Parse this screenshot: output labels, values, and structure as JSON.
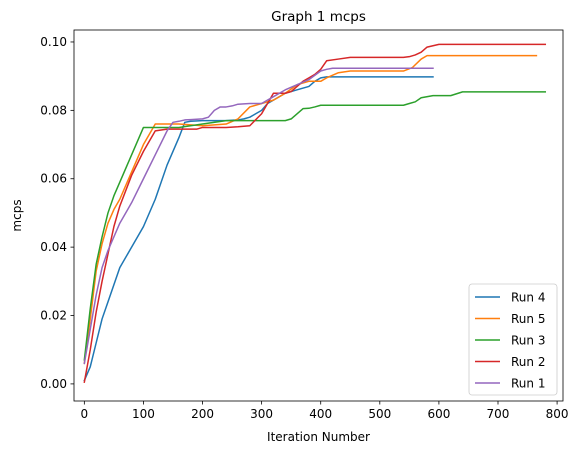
{
  "chart_data": {
    "type": "line",
    "title": "Graph 1 mcps",
    "xlabel": "Iteration Number",
    "ylabel": "mcps",
    "xlim": [
      -17.5,
      810
    ],
    "ylim": [
      -0.005,
      0.1035
    ],
    "xticks": [
      0,
      100,
      200,
      300,
      400,
      500,
      600,
      700,
      800
    ],
    "xtick_labels": [
      "0",
      "100",
      "200",
      "300",
      "400",
      "500",
      "600",
      "700",
      "800"
    ],
    "yticks": [
      0.0,
      0.02,
      0.04,
      0.06,
      0.08,
      0.1
    ],
    "ytick_labels": [
      "0.00",
      "0.02",
      "0.04",
      "0.06",
      "0.08",
      "0.10"
    ],
    "grid": false,
    "legend_position": "lower-right",
    "series": [
      {
        "name": "Run 4",
        "color": "#1f77b4",
        "x": [
          0,
          10,
          20,
          30,
          40,
          50,
          60,
          80,
          100,
          120,
          140,
          160,
          170,
          180,
          200,
          220,
          240,
          260,
          270,
          280,
          290,
          300,
          310,
          320,
          340,
          360,
          380,
          390,
          400,
          410,
          450,
          500,
          550,
          590
        ],
        "y": [
          0.001,
          0.005,
          0.012,
          0.019,
          0.024,
          0.029,
          0.034,
          0.04,
          0.046,
          0.054,
          0.064,
          0.072,
          0.0765,
          0.0768,
          0.077,
          0.077,
          0.077,
          0.0772,
          0.0775,
          0.078,
          0.079,
          0.08,
          0.082,
          0.083,
          0.085,
          0.086,
          0.087,
          0.0885,
          0.0895,
          0.0898,
          0.0898,
          0.0898,
          0.0898,
          0.0898
        ]
      },
      {
        "name": "Run 5",
        "color": "#ff7f0e",
        "x": [
          0,
          10,
          20,
          30,
          40,
          50,
          60,
          80,
          100,
          120,
          140,
          160,
          200,
          240,
          260,
          280,
          300,
          320,
          340,
          360,
          380,
          400,
          410,
          430,
          450,
          500,
          540,
          555,
          570,
          580,
          600,
          650,
          700,
          765
        ],
        "y": [
          0.006,
          0.019,
          0.033,
          0.041,
          0.047,
          0.051,
          0.054,
          0.062,
          0.07,
          0.076,
          0.076,
          0.076,
          0.0755,
          0.076,
          0.0775,
          0.081,
          0.082,
          0.083,
          0.085,
          0.0875,
          0.0885,
          0.0885,
          0.0895,
          0.091,
          0.0915,
          0.0915,
          0.0915,
          0.0925,
          0.095,
          0.096,
          0.096,
          0.096,
          0.096,
          0.096
        ]
      },
      {
        "name": "Run 3",
        "color": "#2ca02c",
        "x": [
          0,
          10,
          20,
          30,
          40,
          50,
          60,
          80,
          100,
          120,
          160,
          200,
          240,
          280,
          300,
          320,
          340,
          350,
          360,
          370,
          380,
          390,
          400,
          450,
          500,
          540,
          550,
          560,
          570,
          590,
          620,
          640,
          700,
          780
        ],
        "y": [
          0.007,
          0.022,
          0.035,
          0.043,
          0.05,
          0.055,
          0.059,
          0.067,
          0.075,
          0.075,
          0.075,
          0.076,
          0.077,
          0.077,
          0.077,
          0.077,
          0.077,
          0.0775,
          0.079,
          0.0805,
          0.0806,
          0.081,
          0.0815,
          0.0815,
          0.0815,
          0.0815,
          0.082,
          0.0825,
          0.0837,
          0.0843,
          0.0843,
          0.0854,
          0.0854,
          0.0854
        ]
      },
      {
        "name": "Run 2",
        "color": "#d62728",
        "x": [
          0,
          10,
          20,
          30,
          40,
          50,
          60,
          80,
          100,
          120,
          140,
          160,
          180,
          190,
          200,
          220,
          240,
          260,
          280,
          300,
          310,
          320,
          330,
          340,
          350,
          360,
          370,
          380,
          390,
          400,
          410,
          430,
          450,
          500,
          540,
          550,
          560,
          570,
          580,
          600,
          650,
          700,
          780
        ],
        "y": [
          0.0005,
          0.01,
          0.021,
          0.03,
          0.038,
          0.046,
          0.052,
          0.061,
          0.068,
          0.074,
          0.0745,
          0.0745,
          0.0745,
          0.0745,
          0.075,
          0.075,
          0.075,
          0.0752,
          0.0755,
          0.079,
          0.082,
          0.085,
          0.085,
          0.085,
          0.0855,
          0.087,
          0.0885,
          0.0895,
          0.0905,
          0.092,
          0.0945,
          0.095,
          0.0955,
          0.0955,
          0.0955,
          0.0957,
          0.0962,
          0.097,
          0.0985,
          0.0993,
          0.0993,
          0.0993,
          0.0993
        ]
      },
      {
        "name": "Run 1",
        "color": "#9467bd",
        "x": [
          0,
          10,
          20,
          30,
          40,
          50,
          60,
          80,
          100,
          120,
          140,
          150,
          160,
          170,
          180,
          200,
          210,
          220,
          230,
          240,
          250,
          260,
          280,
          300,
          320,
          340,
          360,
          380,
          400,
          410,
          420,
          440,
          470,
          500,
          550,
          590
        ],
        "y": [
          0.006,
          0.016,
          0.026,
          0.034,
          0.039,
          0.043,
          0.047,
          0.053,
          0.06,
          0.067,
          0.074,
          0.0765,
          0.0768,
          0.0772,
          0.0773,
          0.0775,
          0.078,
          0.08,
          0.081,
          0.081,
          0.0813,
          0.0818,
          0.082,
          0.082,
          0.084,
          0.086,
          0.0875,
          0.089,
          0.0915,
          0.092,
          0.0923,
          0.0923,
          0.0923,
          0.0923,
          0.0923,
          0.0923
        ]
      }
    ]
  }
}
